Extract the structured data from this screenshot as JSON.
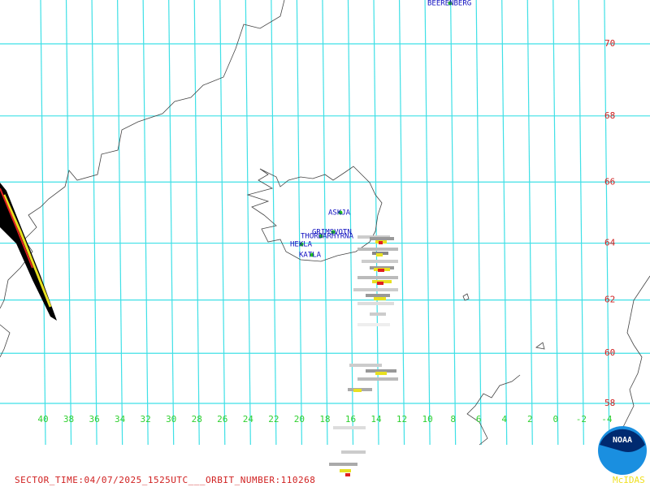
{
  "volcanoes": [
    {
      "name": "BEERENBERG"
    },
    {
      "name": "ASKJA"
    },
    {
      "name": "GRIMSVOTN"
    },
    {
      "name": "THORDARHYRNA"
    },
    {
      "name": "HEKLA"
    },
    {
      "name": "KATLA"
    }
  ],
  "latitude_labels": [
    70,
    68,
    66,
    64,
    62,
    60,
    58
  ],
  "longitude_labels": [
    40,
    38,
    36,
    34,
    32,
    30,
    28,
    26,
    24,
    22,
    20,
    18,
    16,
    14,
    12,
    10,
    8,
    6,
    4,
    2,
    0,
    -2,
    -4
  ],
  "footer": "SECTOR_TIME:04/07/2025_1525UTC___ORBIT_NUMBER:110268",
  "logo": {
    "text": "NOAA",
    "caption": "McIDAS"
  }
}
